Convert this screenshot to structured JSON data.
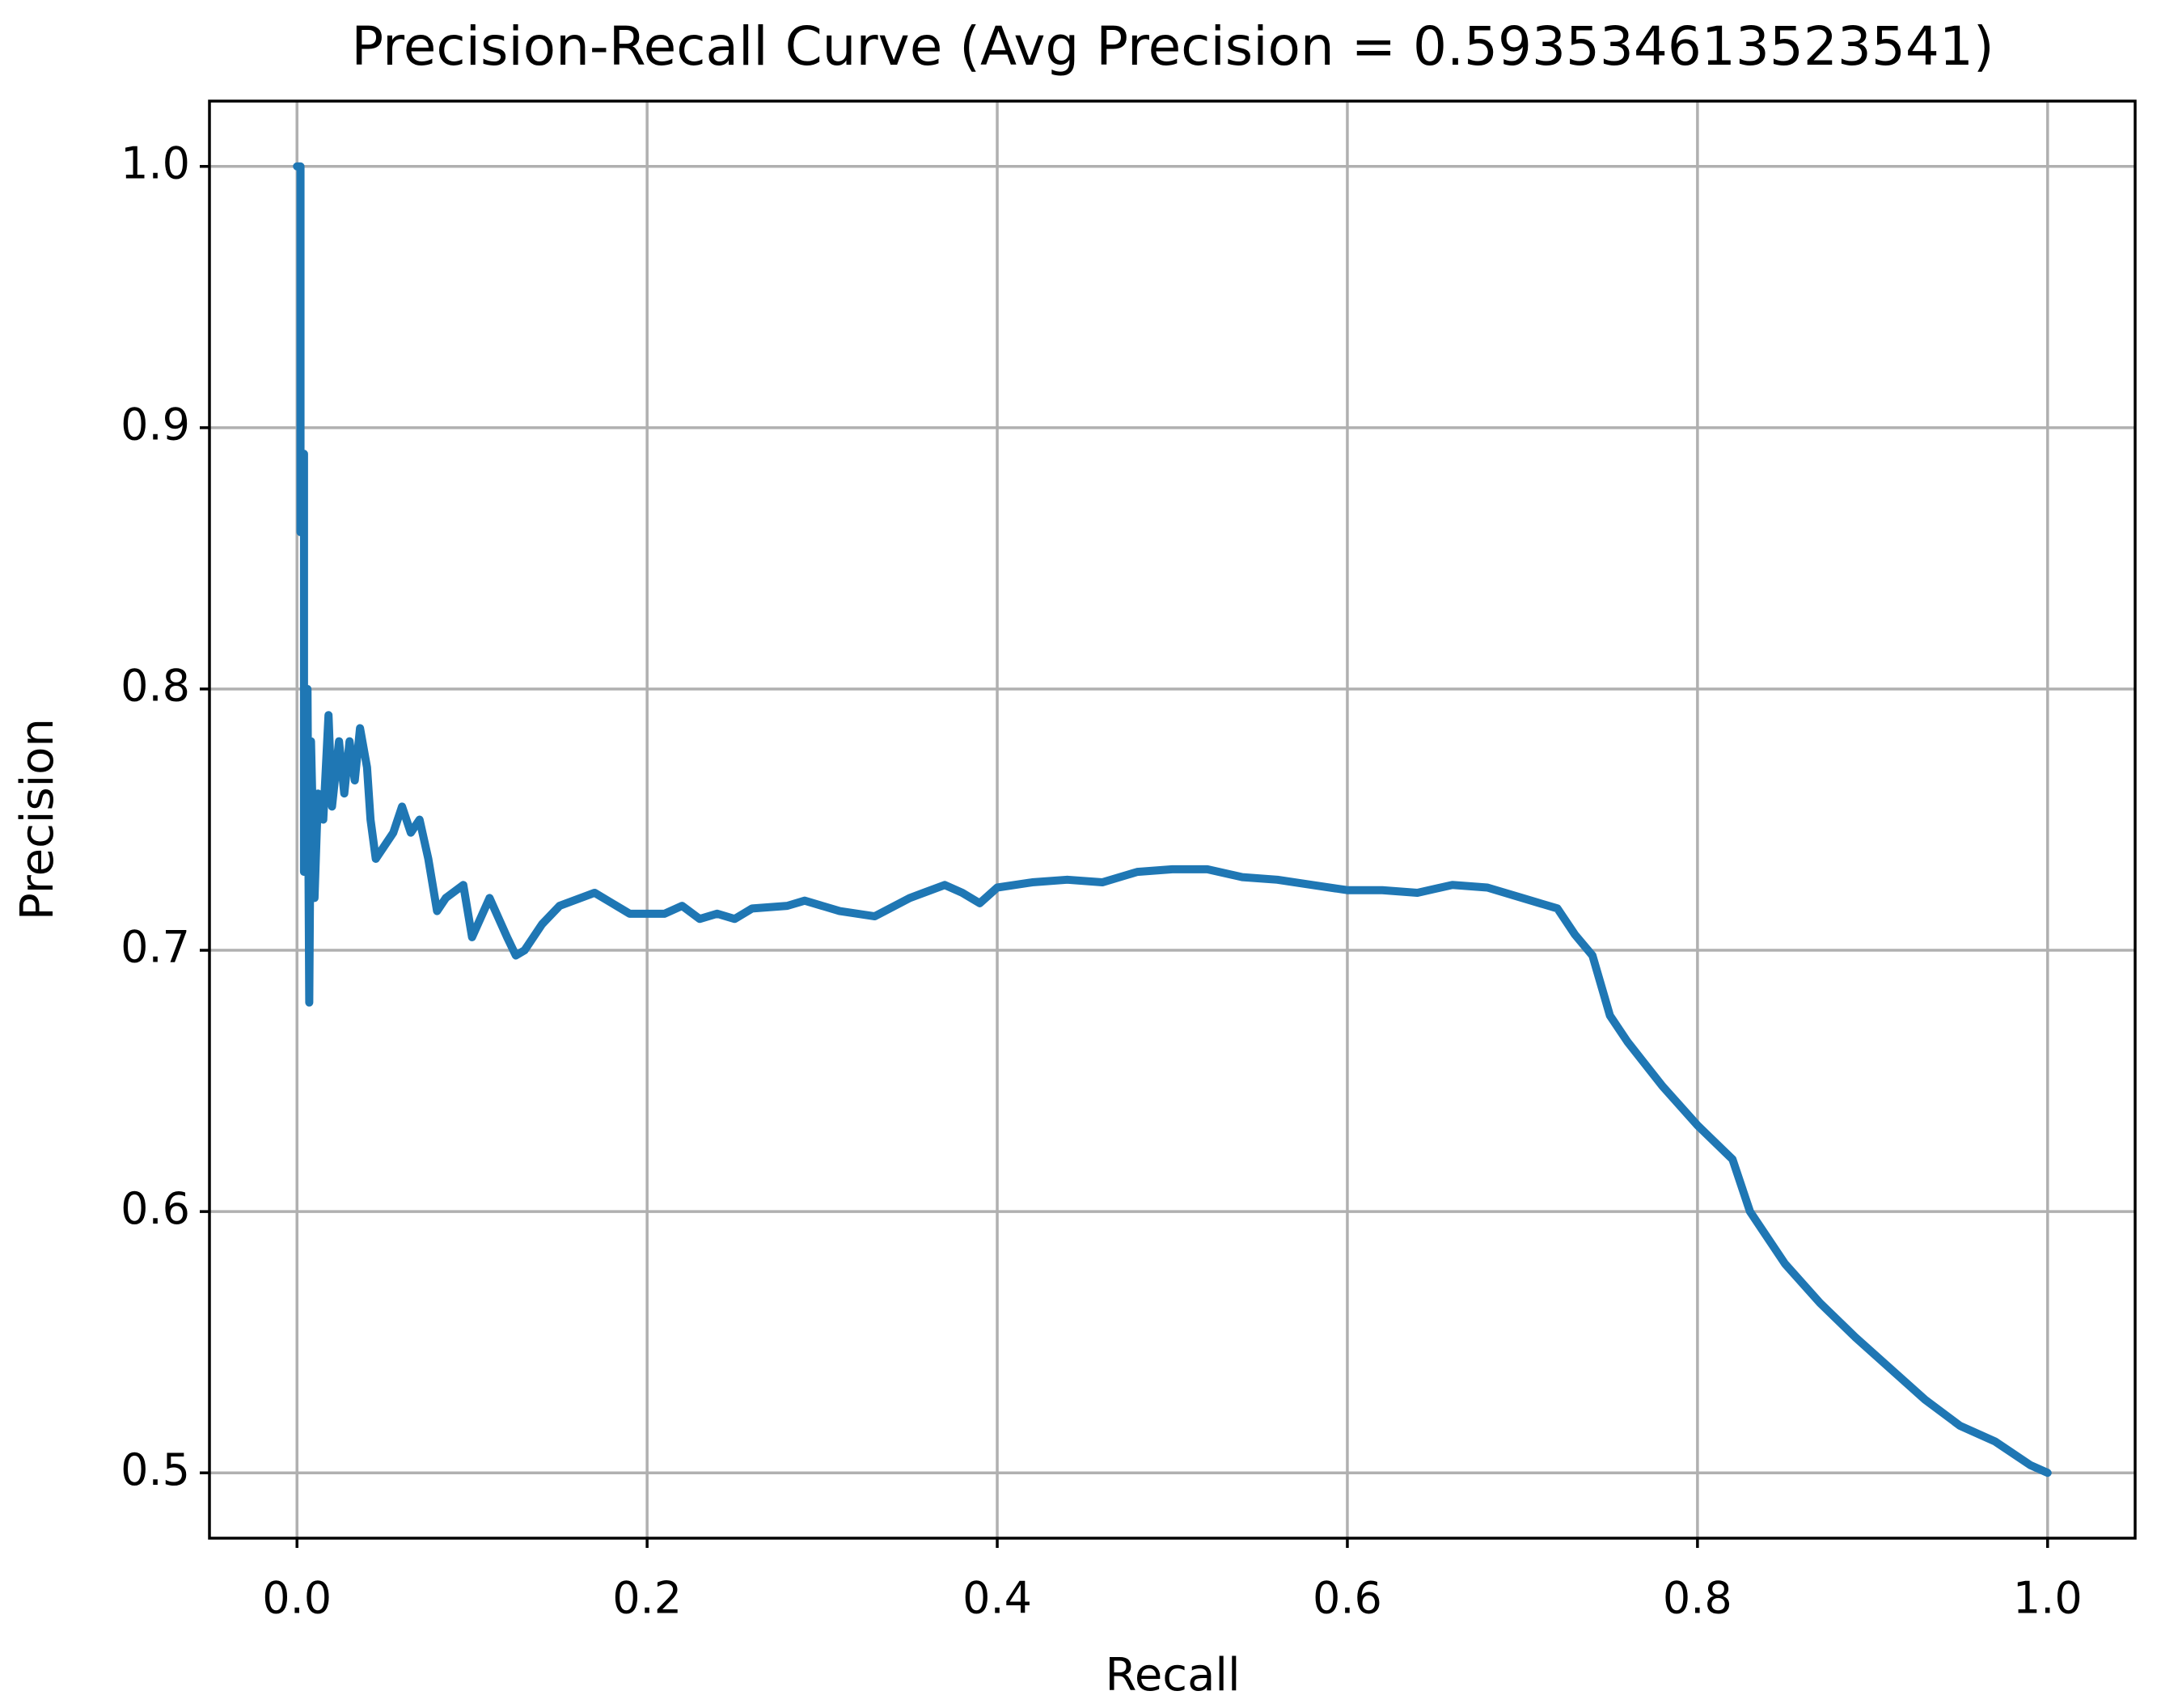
{
  "chart_data": {
    "type": "line",
    "title": "Precision-Recall Curve (Avg Precision = 0.593534613523541)",
    "xlabel": "Recall",
    "ylabel": "Precision",
    "x": [
      0.0,
      0.002,
      0.002,
      0.004,
      0.004,
      0.006,
      0.007,
      0.008,
      0.01,
      0.012,
      0.015,
      0.018,
      0.02,
      0.024,
      0.027,
      0.03,
      0.033,
      0.036,
      0.04,
      0.042,
      0.045,
      0.05,
      0.055,
      0.06,
      0.065,
      0.07,
      0.075,
      0.08,
      0.085,
      0.095,
      0.1,
      0.11,
      0.12,
      0.125,
      0.13,
      0.14,
      0.15,
      0.17,
      0.18,
      0.19,
      0.21,
      0.22,
      0.23,
      0.24,
      0.25,
      0.26,
      0.28,
      0.29,
      0.31,
      0.33,
      0.35,
      0.37,
      0.38,
      0.39,
      0.4,
      0.42,
      0.44,
      0.46,
      0.48,
      0.5,
      0.52,
      0.54,
      0.56,
      0.58,
      0.6,
      0.62,
      0.64,
      0.66,
      0.68,
      0.7,
      0.72,
      0.73,
      0.74,
      0.75,
      0.76,
      0.78,
      0.8,
      0.82,
      0.83,
      0.85,
      0.87,
      0.89,
      0.91,
      0.93,
      0.95,
      0.97,
      0.99,
      1.0
    ],
    "series": [
      {
        "name": "Precision",
        "color": "#1f77b4",
        "values": [
          1.0,
          1.0,
          0.86,
          0.89,
          0.73,
          0.8,
          0.68,
          0.78,
          0.72,
          0.76,
          0.75,
          0.79,
          0.755,
          0.78,
          0.76,
          0.78,
          0.765,
          0.785,
          0.77,
          0.75,
          0.735,
          0.74,
          0.745,
          0.755,
          0.745,
          0.75,
          0.735,
          0.715,
          0.72,
          0.725,
          0.705,
          0.72,
          0.705,
          0.698,
          0.7,
          0.71,
          0.717,
          0.722,
          0.718,
          0.714,
          0.714,
          0.717,
          0.712,
          0.714,
          0.712,
          0.716,
          0.717,
          0.719,
          0.715,
          0.713,
          0.72,
          0.725,
          0.722,
          0.718,
          0.724,
          0.726,
          0.727,
          0.726,
          0.73,
          0.731,
          0.731,
          0.728,
          0.727,
          0.725,
          0.723,
          0.723,
          0.722,
          0.725,
          0.724,
          0.72,
          0.716,
          0.706,
          0.698,
          0.675,
          0.665,
          0.648,
          0.633,
          0.62,
          0.6,
          0.58,
          0.565,
          0.552,
          0.54,
          0.528,
          0.518,
          0.512,
          0.503,
          0.5
        ]
      }
    ],
    "xlim": [
      -0.05,
      1.05
    ],
    "ylim": [
      0.475,
      1.025
    ],
    "xticks": [
      {
        "value": 0,
        "label": "0.0"
      },
      0.2,
      0.4,
      0.6,
      0.8,
      {
        "value": 1,
        "label": "1.0"
      }
    ],
    "yticks": [
      0.5,
      0.6,
      0.7,
      0.8,
      0.9,
      {
        "value": 1,
        "label": "1.0"
      }
    ],
    "grid": true
  }
}
